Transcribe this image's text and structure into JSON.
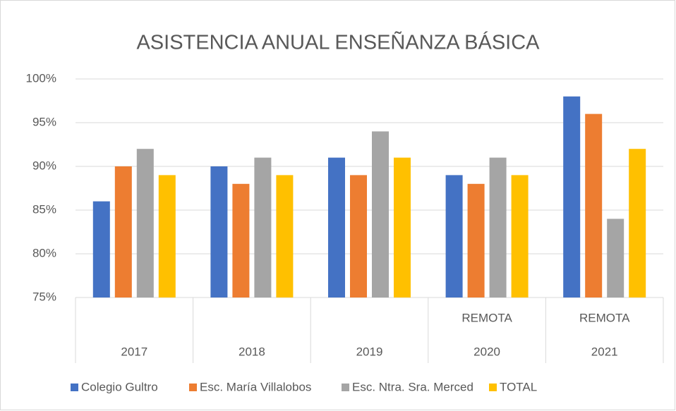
{
  "chart_data": {
    "type": "bar",
    "title": "ASISTENCIA ANUAL ENSEÑANZA BÁSICA",
    "categories": [
      "2017",
      "2018",
      "2019",
      "2020",
      "2021"
    ],
    "subcategories": [
      null,
      null,
      null,
      "REMOTA",
      "REMOTA"
    ],
    "series": [
      {
        "name": "Colegio Gultro",
        "color": "#4472c4",
        "values": [
          86,
          90,
          91,
          89,
          98
        ]
      },
      {
        "name": "Esc. María Villalobos",
        "color": "#ed7d31",
        "values": [
          90,
          88,
          89,
          88,
          96
        ]
      },
      {
        "name": "Esc. Ntra. Sra.  Merced",
        "color": "#a5a5a5",
        "values": [
          92,
          91,
          94,
          91,
          84
        ]
      },
      {
        "name": "TOTAL",
        "color": "#ffc000",
        "values": [
          89,
          89,
          91,
          89,
          92
        ]
      }
    ],
    "ylim": [
      75,
      100
    ],
    "yticks": [
      {
        "value": 75,
        "label": "75%"
      },
      {
        "value": 80,
        "label": "80%"
      },
      {
        "value": 85,
        "label": "85%"
      },
      {
        "value": 90,
        "label": "90%"
      },
      {
        "value": 95,
        "label": "95%"
      },
      {
        "value": 100,
        "label": "100%"
      }
    ],
    "grid": true,
    "legend": "bottom"
  }
}
